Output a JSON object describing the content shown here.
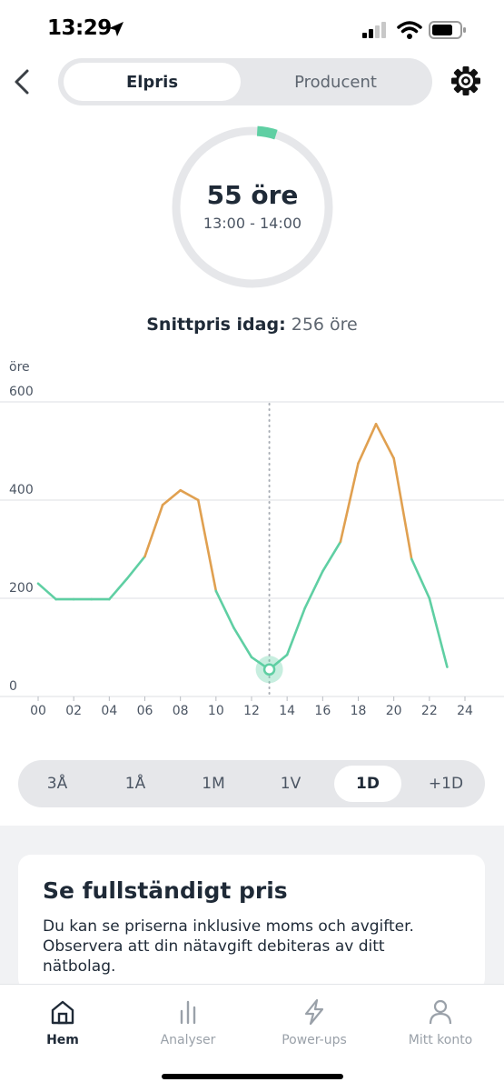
{
  "status_bar": {
    "time": "13:29"
  },
  "header": {
    "tabs": [
      {
        "label": "Elpris",
        "active": true
      },
      {
        "label": "Producent",
        "active": false
      }
    ]
  },
  "gauge": {
    "value": "55 öre",
    "range": "13:00 - 14:00",
    "fill_fraction": 0.04,
    "accent_color": "#5fcfa3"
  },
  "average": {
    "label": "Snittpris idag:",
    "value": "256 öre"
  },
  "chart_data": {
    "type": "line",
    "ylabel": "öre",
    "ylim": [
      0,
      600
    ],
    "yticks": [
      600,
      400,
      200,
      0
    ],
    "xlim": [
      0,
      24
    ],
    "xticks": [
      "00",
      "02",
      "04",
      "06",
      "08",
      "10",
      "12",
      "14",
      "16",
      "18",
      "20",
      "22",
      "24"
    ],
    "x": [
      0,
      1,
      2,
      3,
      4,
      5,
      6,
      7,
      8,
      9,
      10,
      11,
      12,
      13,
      14,
      15,
      16,
      17,
      18,
      19,
      20,
      21,
      22,
      23
    ],
    "series": [
      {
        "values": [
          230,
          198,
          198,
          198,
          198,
          240,
          285,
          390,
          420,
          400,
          215,
          140,
          80,
          55,
          85,
          180,
          255,
          315,
          475,
          555,
          485,
          280,
          200,
          60
        ]
      }
    ],
    "current_hour": 13,
    "grid": true,
    "colors": {
      "low": "#5fcfa3",
      "high": "#e0a050"
    }
  },
  "range_selector": {
    "options": [
      "3Å",
      "1Å",
      "1M",
      "1V",
      "1D",
      "+1D"
    ],
    "selected": "1D"
  },
  "info_card": {
    "title": "Se fullständigt pris",
    "text": "Du kan se priserna inklusive moms och avgifter. Observera att din nätavgift debiteras av ditt nätbolag."
  },
  "tabbar": {
    "items": [
      {
        "label": "Hem",
        "icon": "home-icon",
        "active": true
      },
      {
        "label": "Analyser",
        "icon": "bar-chart-icon",
        "active": false
      },
      {
        "label": "Power-ups",
        "icon": "lightning-icon",
        "active": false
      },
      {
        "label": "Mitt konto",
        "icon": "person-icon",
        "active": false
      }
    ]
  }
}
